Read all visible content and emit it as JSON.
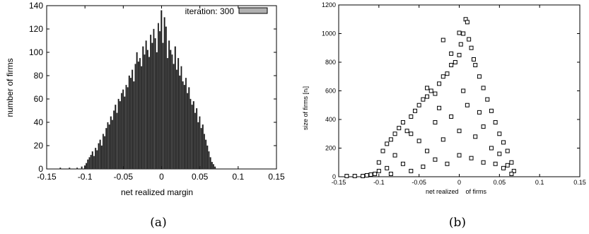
{
  "chart_data": [
    {
      "type": "bar",
      "panel_caption": "(a)",
      "xlabel": "net realized margin",
      "ylabel": "number of firms",
      "xlim": [
        -0.15,
        0.15
      ],
      "ylim": [
        0,
        140
      ],
      "xticks": [
        "-0.15",
        "-0.1",
        "-0.05",
        "0",
        "0.05",
        "0.1",
        "0.15"
      ],
      "yticks": [
        "0",
        "20",
        "40",
        "60",
        "80",
        "100",
        "120",
        "140"
      ],
      "legend": {
        "label": "iteration: 300",
        "position": "top-right"
      },
      "grid": false,
      "bin_width": 0.002,
      "x": [
        -0.132,
        -0.12,
        -0.11,
        -0.104,
        -0.1,
        -0.098,
        -0.096,
        -0.094,
        -0.092,
        -0.09,
        -0.088,
        -0.086,
        -0.084,
        -0.082,
        -0.08,
        -0.078,
        -0.076,
        -0.074,
        -0.072,
        -0.07,
        -0.068,
        -0.066,
        -0.064,
        -0.062,
        -0.06,
        -0.058,
        -0.056,
        -0.054,
        -0.052,
        -0.05,
        -0.048,
        -0.046,
        -0.044,
        -0.042,
        -0.04,
        -0.038,
        -0.036,
        -0.034,
        -0.032,
        -0.03,
        -0.028,
        -0.026,
        -0.024,
        -0.022,
        -0.02,
        -0.018,
        -0.016,
        -0.014,
        -0.012,
        -0.01,
        -0.008,
        -0.006,
        -0.004,
        -0.002,
        0,
        0.002,
        0.004,
        0.006,
        0.008,
        0.01,
        0.012,
        0.014,
        0.016,
        0.018,
        0.02,
        0.022,
        0.024,
        0.026,
        0.028,
        0.03,
        0.032,
        0.034,
        0.036,
        0.038,
        0.04,
        0.042,
        0.044,
        0.046,
        0.048,
        0.05,
        0.052,
        0.054,
        0.056,
        0.058,
        0.06,
        0.062,
        0.064,
        0.066,
        0.068,
        0.07
      ],
      "values": [
        1,
        1,
        1,
        2,
        3,
        5,
        8,
        10,
        12,
        15,
        11,
        18,
        16,
        22,
        25,
        20,
        30,
        28,
        35,
        40,
        38,
        45,
        42,
        50,
        55,
        48,
        60,
        58,
        65,
        68,
        62,
        72,
        70,
        80,
        78,
        85,
        75,
        90,
        100,
        92,
        95,
        88,
        105,
        98,
        110,
        102,
        96,
        115,
        108,
        120,
        112,
        100,
        125,
        118,
        136,
        108,
        130,
        122,
        95,
        110,
        102,
        98,
        90,
        105,
        85,
        95,
        80,
        88,
        75,
        72,
        78,
        65,
        70,
        60,
        55,
        58,
        48,
        52,
        40,
        45,
        35,
        38,
        30,
        25,
        20,
        15,
        10,
        6,
        4,
        2
      ]
    },
    {
      "type": "scatter",
      "panel_caption": "(b)",
      "xlabel": "net realized    of firms",
      "ylabel": "size of firms [nᵢ]",
      "xlim": [
        -0.15,
        0.15
      ],
      "ylim": [
        0,
        1200
      ],
      "xticks": [
        "-0.15",
        "-0.1",
        "-0.05",
        "0",
        "0.05",
        "0.1",
        "0.15"
      ],
      "yticks": [
        "0",
        "200",
        "400",
        "600",
        "800",
        "1000",
        "1200"
      ],
      "marker": "open-square",
      "grid": false,
      "points": [
        [
          -0.14,
          5
        ],
        [
          -0.13,
          5
        ],
        [
          -0.12,
          5
        ],
        [
          -0.115,
          10
        ],
        [
          -0.11,
          15
        ],
        [
          -0.105,
          20
        ],
        [
          -0.1,
          40
        ],
        [
          -0.1,
          100
        ],
        [
          -0.095,
          180
        ],
        [
          -0.09,
          230
        ],
        [
          -0.085,
          260
        ],
        [
          -0.08,
          300
        ],
        [
          -0.075,
          340
        ],
        [
          -0.07,
          380
        ],
        [
          -0.065,
          320
        ],
        [
          -0.06,
          420
        ],
        [
          -0.055,
          460
        ],
        [
          -0.05,
          500
        ],
        [
          -0.045,
          540
        ],
        [
          -0.04,
          560
        ],
        [
          -0.035,
          600
        ],
        [
          -0.03,
          580
        ],
        [
          -0.025,
          650
        ],
        [
          -0.02,
          700
        ],
        [
          -0.015,
          720
        ],
        [
          -0.01,
          780
        ],
        [
          -0.005,
          800
        ],
        [
          0,
          850
        ],
        [
          0.005,
          1000
        ],
        [
          0.008,
          1100
        ],
        [
          0.01,
          1080
        ],
        [
          0.012,
          960
        ],
        [
          0.015,
          900
        ],
        [
          0.018,
          820
        ],
        [
          0.02,
          780
        ],
        [
          0.025,
          700
        ],
        [
          0.03,
          620
        ],
        [
          0.035,
          540
        ],
        [
          0.04,
          460
        ],
        [
          0.045,
          380
        ],
        [
          0.05,
          300
        ],
        [
          0.055,
          240
        ],
        [
          0.06,
          180
        ],
        [
          0.065,
          100
        ],
        [
          0.068,
          40
        ],
        [
          -0.02,
          955
        ],
        [
          -0.04,
          620
        ],
        [
          0.0,
          1005
        ],
        [
          0.002,
          925
        ],
        [
          -0.01,
          860
        ],
        [
          -0.06,
          300
        ],
        [
          -0.08,
          150
        ],
        [
          -0.09,
          60
        ],
        [
          -0.05,
          250
        ],
        [
          -0.03,
          380
        ],
        [
          -0.01,
          420
        ],
        [
          0.01,
          500
        ],
        [
          0.03,
          350
        ],
        [
          0.05,
          160
        ],
        [
          0.06,
          80
        ],
        [
          -0.07,
          90
        ],
        [
          -0.04,
          180
        ],
        [
          -0.02,
          260
        ],
        [
          0.0,
          320
        ],
        [
          0.02,
          280
        ],
        [
          0.04,
          200
        ],
        [
          -0.06,
          40
        ],
        [
          -0.03,
          120
        ],
        [
          0.0,
          150
        ],
        [
          0.03,
          100
        ],
        [
          0.055,
          60
        ],
        [
          -0.085,
          20
        ],
        [
          -0.045,
          70
        ],
        [
          -0.015,
          90
        ],
        [
          0.015,
          130
        ],
        [
          0.045,
          90
        ],
        [
          0.065,
          20
        ],
        [
          -0.025,
          480
        ],
        [
          0.005,
          600
        ],
        [
          0.025,
          450
        ]
      ]
    }
  ]
}
